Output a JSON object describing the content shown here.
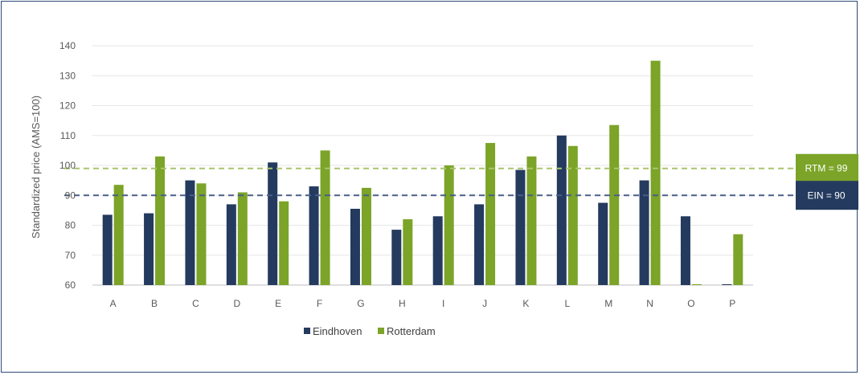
{
  "chart_data": {
    "type": "bar",
    "title": "",
    "xlabel": "",
    "ylabel": "Standardized price (AMS=100)",
    "ylim": [
      60,
      140
    ],
    "yticks": [
      60,
      70,
      80,
      90,
      100,
      110,
      120,
      130,
      140
    ],
    "categories": [
      "A",
      "B",
      "C",
      "D",
      "E",
      "F",
      "G",
      "H",
      "I",
      "J",
      "K",
      "L",
      "M",
      "N",
      "O",
      "P"
    ],
    "series": [
      {
        "name": "Eindhoven",
        "color": "#243a5e",
        "values": [
          83.5,
          84,
          95,
          87,
          101,
          93,
          85.5,
          78.5,
          83,
          87,
          98.5,
          110,
          87.5,
          95,
          83,
          60
        ]
      },
      {
        "name": "Rotterdam",
        "color": "#7ba428",
        "values": [
          93.5,
          103,
          94,
          91,
          88,
          105,
          92.5,
          82,
          100,
          107.5,
          103,
          106.5,
          113.5,
          135,
          60,
          77
        ]
      }
    ],
    "reference_lines": [
      {
        "label": "RTM = 99",
        "value": 99,
        "color": "#a9c46c",
        "box_color": "#7ba428"
      },
      {
        "label": "EIN = 90",
        "value": 90,
        "color": "#4a5f87",
        "box_color": "#243a5e"
      }
    ],
    "grid": true,
    "legend_position": "bottom-center"
  }
}
